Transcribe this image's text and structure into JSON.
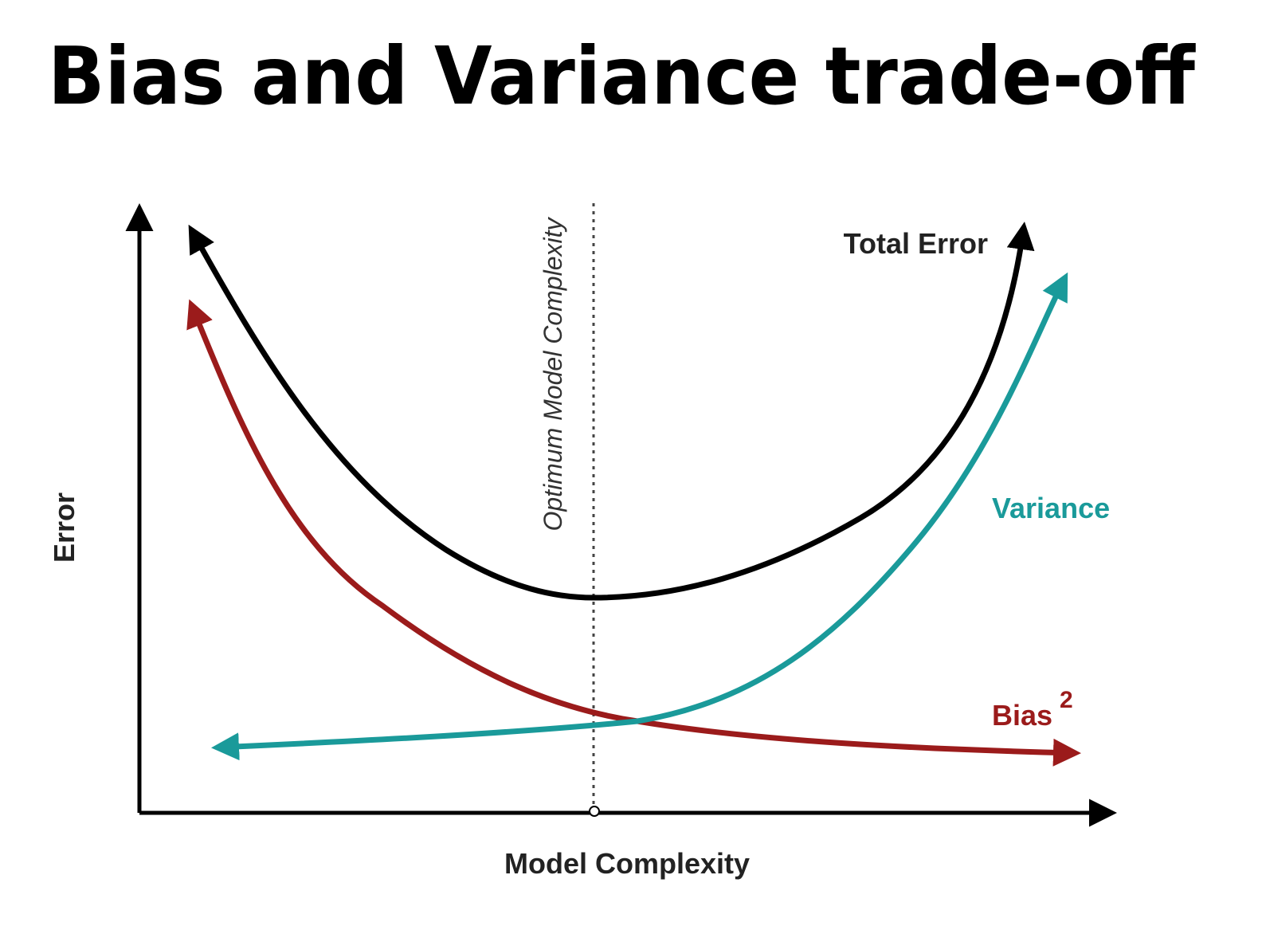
{
  "title": "Bias and Variance trade-off",
  "labels": {
    "optimum": "Optimum Model Complexity",
    "total_error": "Total Error",
    "variance": "Variance",
    "bias": "Bias",
    "bias_power": "2",
    "y_axis": "Error",
    "x_axis": "Model Complexity"
  }
}
